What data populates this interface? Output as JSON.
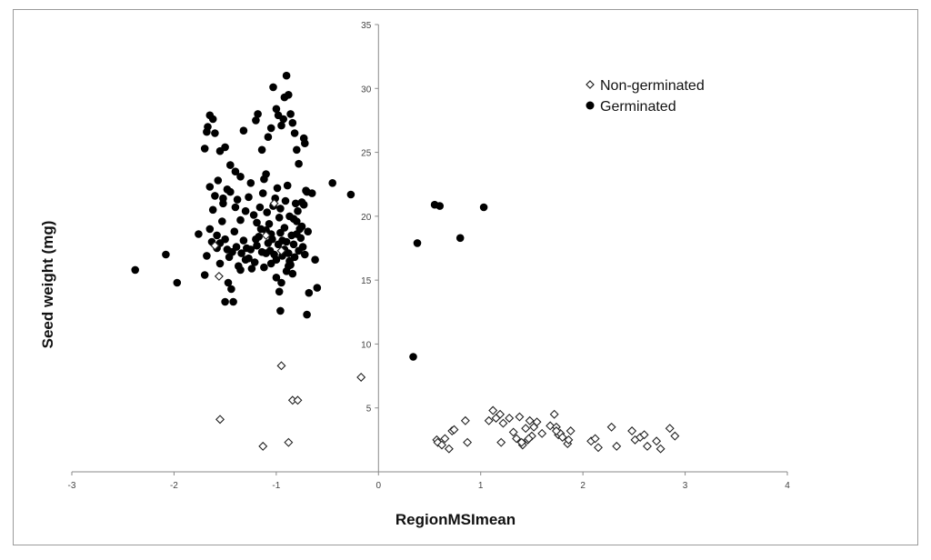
{
  "chart_data": {
    "type": "scatter",
    "title": "",
    "xlabel": "RegionMSImean",
    "ylabel": "Seed weight  (mg)",
    "xlim": [
      -3,
      4
    ],
    "ylim": [
      0,
      35
    ],
    "x_ticks": [
      "-3",
      "-2",
      "-1",
      "0",
      "1",
      "2",
      "3",
      "4"
    ],
    "y_ticks": [
      "5",
      "10",
      "15",
      "20",
      "25",
      "30",
      "35"
    ],
    "grid": false,
    "legend_position": "top-right",
    "series": [
      {
        "name": "Non-germinated",
        "marker": "open-diamond",
        "points": [
          [
            -1.55,
            4.1
          ],
          [
            -1.13,
            2.0
          ],
          [
            -0.95,
            8.3
          ],
          [
            -0.88,
            2.3
          ],
          [
            -0.84,
            5.6
          ],
          [
            -0.79,
            5.6
          ],
          [
            -0.17,
            7.4
          ],
          [
            -1.56,
            15.3
          ],
          [
            -1.6,
            17.7
          ],
          [
            -1.02,
            21.0
          ],
          [
            -1.1,
            18.5
          ],
          [
            -0.95,
            17.3
          ],
          [
            0.57,
            2.5
          ],
          [
            0.58,
            2.3
          ],
          [
            0.62,
            2.1
          ],
          [
            0.65,
            2.6
          ],
          [
            0.69,
            1.8
          ],
          [
            0.72,
            3.2
          ],
          [
            0.74,
            3.3
          ],
          [
            0.85,
            4.0
          ],
          [
            0.87,
            2.3
          ],
          [
            1.08,
            4.0
          ],
          [
            1.12,
            4.8
          ],
          [
            1.15,
            4.2
          ],
          [
            1.19,
            4.5
          ],
          [
            1.2,
            2.3
          ],
          [
            1.22,
            3.8
          ],
          [
            1.28,
            4.2
          ],
          [
            1.32,
            3.1
          ],
          [
            1.35,
            2.6
          ],
          [
            1.38,
            4.3
          ],
          [
            1.41,
            2.1
          ],
          [
            1.44,
            3.4
          ],
          [
            1.46,
            2.5
          ],
          [
            1.48,
            4.0
          ],
          [
            1.5,
            2.8
          ],
          [
            1.52,
            3.5
          ],
          [
            1.55,
            3.9
          ],
          [
            1.6,
            3.0
          ],
          [
            1.68,
            3.6
          ],
          [
            1.72,
            4.5
          ],
          [
            1.74,
            3.5
          ],
          [
            1.76,
            2.9
          ],
          [
            1.78,
            3.0
          ],
          [
            1.8,
            2.7
          ],
          [
            1.85,
            2.2
          ],
          [
            1.88,
            3.2
          ],
          [
            1.86,
            2.5
          ],
          [
            2.08,
            2.4
          ],
          [
            2.12,
            2.6
          ],
          [
            2.15,
            1.9
          ],
          [
            2.28,
            3.5
          ],
          [
            2.33,
            2.0
          ],
          [
            2.48,
            3.2
          ],
          [
            2.51,
            2.5
          ],
          [
            2.56,
            2.7
          ],
          [
            2.6,
            2.9
          ],
          [
            2.63,
            2.0
          ],
          [
            2.72,
            2.4
          ],
          [
            2.76,
            1.8
          ],
          [
            2.85,
            3.4
          ],
          [
            2.9,
            2.8
          ],
          [
            1.4,
            2.3
          ],
          [
            1.74,
            3.2
          ],
          [
            1.47,
            2.6
          ]
        ]
      },
      {
        "name": "Germinated",
        "marker": "filled-circle",
        "points": [
          [
            -2.38,
            15.8
          ],
          [
            -2.08,
            17.0
          ],
          [
            -1.97,
            14.8
          ],
          [
            -1.76,
            18.6
          ],
          [
            -1.7,
            15.4
          ],
          [
            -1.68,
            16.9
          ],
          [
            -1.65,
            19.0
          ],
          [
            -1.62,
            20.5
          ],
          [
            -1.58,
            17.5
          ],
          [
            -1.55,
            16.3
          ],
          [
            -1.52,
            21.0
          ],
          [
            -1.5,
            13.3
          ],
          [
            -1.47,
            14.8
          ],
          [
            -1.44,
            14.3
          ],
          [
            -1.42,
            13.3
          ],
          [
            -1.35,
            15.8
          ],
          [
            -1.3,
            16.6
          ],
          [
            -1.25,
            17.4
          ],
          [
            -1.2,
            18.2
          ],
          [
            -1.15,
            19.0
          ],
          [
            -1.1,
            17.1
          ],
          [
            -1.05,
            16.3
          ],
          [
            -1.0,
            15.2
          ],
          [
            -0.95,
            14.8
          ],
          [
            -0.9,
            15.7
          ],
          [
            -0.87,
            16.5
          ],
          [
            -0.83,
            17.8
          ],
          [
            -0.8,
            19.6
          ],
          [
            -0.75,
            19.2
          ],
          [
            -0.72,
            17.0
          ],
          [
            -0.7,
            21.9
          ],
          [
            -0.65,
            21.8
          ],
          [
            -0.62,
            16.6
          ],
          [
            -0.6,
            14.4
          ],
          [
            -0.68,
            14.0
          ],
          [
            -0.97,
            14.1
          ],
          [
            -0.96,
            12.6
          ],
          [
            -0.7,
            12.3
          ],
          [
            -0.45,
            22.6
          ],
          [
            -0.27,
            21.7
          ],
          [
            -1.7,
            25.3
          ],
          [
            -1.68,
            26.6
          ],
          [
            -1.67,
            27.0
          ],
          [
            -1.65,
            27.9
          ],
          [
            -1.62,
            27.6
          ],
          [
            -1.6,
            26.5
          ],
          [
            -1.55,
            25.1
          ],
          [
            -1.5,
            25.4
          ],
          [
            -1.45,
            24.0
          ],
          [
            -1.4,
            23.5
          ],
          [
            -1.35,
            23.1
          ],
          [
            -1.32,
            26.7
          ],
          [
            -1.2,
            27.5
          ],
          [
            -1.18,
            28.0
          ],
          [
            -1.14,
            25.2
          ],
          [
            -1.1,
            23.3
          ],
          [
            -1.08,
            26.2
          ],
          [
            -1.05,
            26.9
          ],
          [
            -1.03,
            30.1
          ],
          [
            -1.0,
            28.4
          ],
          [
            -0.98,
            27.9
          ],
          [
            -0.95,
            27.1
          ],
          [
            -0.93,
            27.6
          ],
          [
            -0.92,
            29.3
          ],
          [
            -0.9,
            31.0
          ],
          [
            -0.88,
            29.5
          ],
          [
            -0.86,
            28.0
          ],
          [
            -0.84,
            27.3
          ],
          [
            -0.82,
            26.5
          ],
          [
            -0.8,
            25.2
          ],
          [
            -0.78,
            24.1
          ],
          [
            -0.75,
            21.1
          ],
          [
            -0.73,
            26.1
          ],
          [
            -0.72,
            25.7
          ],
          [
            -1.65,
            22.3
          ],
          [
            -1.6,
            21.6
          ],
          [
            -1.57,
            22.8
          ],
          [
            -1.52,
            21.4
          ],
          [
            -1.48,
            22.1
          ],
          [
            -1.45,
            21.9
          ],
          [
            -1.4,
            20.7
          ],
          [
            -1.38,
            21.3
          ],
          [
            -1.35,
            19.7
          ],
          [
            -1.3,
            20.4
          ],
          [
            -1.27,
            21.5
          ],
          [
            -1.25,
            22.6
          ],
          [
            -1.22,
            20.1
          ],
          [
            -1.19,
            19.5
          ],
          [
            -1.16,
            20.7
          ],
          [
            -1.13,
            21.8
          ],
          [
            -1.12,
            22.9
          ],
          [
            -1.09,
            20.3
          ],
          [
            -1.07,
            19.4
          ],
          [
            -1.05,
            18.6
          ],
          [
            -1.03,
            20.8
          ],
          [
            -1.01,
            21.4
          ],
          [
            -0.99,
            22.2
          ],
          [
            -0.97,
            19.9
          ],
          [
            -0.96,
            20.6
          ],
          [
            -0.94,
            18.1
          ],
          [
            -0.92,
            19.1
          ],
          [
            -0.91,
            21.2
          ],
          [
            -0.89,
            22.4
          ],
          [
            -0.87,
            20.0
          ],
          [
            -0.85,
            18.5
          ],
          [
            -0.83,
            19.8
          ],
          [
            -0.81,
            21.0
          ],
          [
            -0.79,
            20.4
          ],
          [
            -0.77,
            19.0
          ],
          [
            -0.76,
            18.3
          ],
          [
            -0.74,
            17.6
          ],
          [
            -0.73,
            20.9
          ],
          [
            -0.71,
            22.0
          ],
          [
            -0.69,
            18.8
          ],
          [
            -1.63,
            18.0
          ],
          [
            -1.58,
            18.5
          ],
          [
            -1.55,
            17.9
          ],
          [
            -1.53,
            19.6
          ],
          [
            -1.5,
            18.2
          ],
          [
            -1.48,
            17.4
          ],
          [
            -1.46,
            16.8
          ],
          [
            -1.43,
            17.2
          ],
          [
            -1.41,
            18.8
          ],
          [
            -1.39,
            17.6
          ],
          [
            -1.37,
            16.1
          ],
          [
            -1.34,
            17.1
          ],
          [
            -1.32,
            18.1
          ],
          [
            -1.29,
            17.5
          ],
          [
            -1.27,
            16.7
          ],
          [
            -1.24,
            15.9
          ],
          [
            -1.21,
            16.4
          ],
          [
            -1.19,
            17.7
          ],
          [
            -1.17,
            18.4
          ],
          [
            -1.14,
            17.2
          ],
          [
            -1.12,
            16.0
          ],
          [
            -1.1,
            18.9
          ],
          [
            -1.08,
            17.9
          ],
          [
            -1.06,
            17.3
          ],
          [
            -1.04,
            18.2
          ],
          [
            -1.02,
            17.0
          ],
          [
            -1.0,
            16.6
          ],
          [
            -0.98,
            17.8
          ],
          [
            -0.96,
            18.7
          ],
          [
            -0.94,
            16.9
          ],
          [
            -0.92,
            17.4
          ],
          [
            -0.9,
            18.0
          ],
          [
            -0.88,
            17.1
          ],
          [
            -0.86,
            16.2
          ],
          [
            -0.84,
            15.5
          ],
          [
            -0.82,
            16.8
          ],
          [
            -0.8,
            18.6
          ],
          [
            -0.78,
            17.3
          ],
          [
            -0.88,
            16.1
          ],
          [
            0.55,
            20.9
          ],
          [
            0.6,
            20.8
          ],
          [
            1.03,
            20.7
          ],
          [
            0.8,
            18.3
          ],
          [
            0.38,
            17.9
          ],
          [
            0.34,
            9.0
          ]
        ]
      }
    ]
  }
}
